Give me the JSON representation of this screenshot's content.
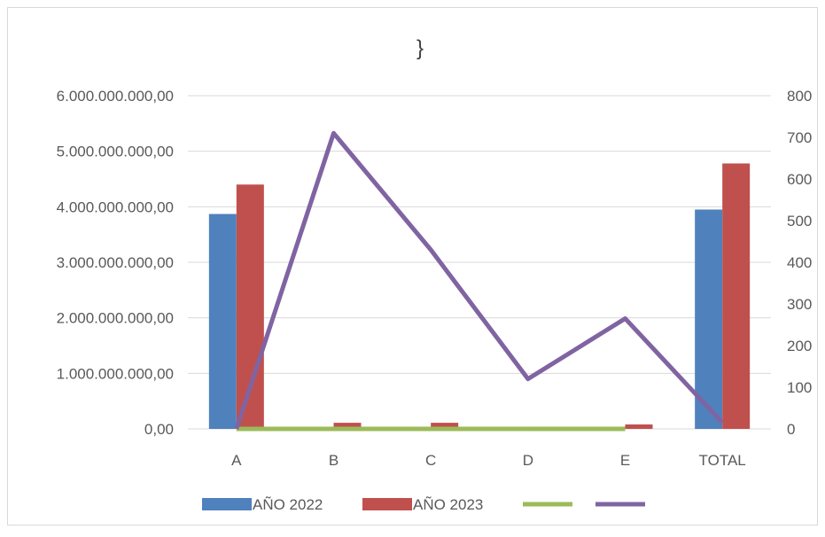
{
  "chart_data": {
    "type": "bar",
    "title": "}",
    "categories": [
      "A",
      "B",
      "C",
      "D",
      "E",
      "TOTAL"
    ],
    "series": [
      {
        "name": "AÑO 2022",
        "type": "bar",
        "axis": "left",
        "color": "#4F81BD",
        "values": [
          3870000000,
          0,
          0,
          0,
          0,
          3950000000
        ]
      },
      {
        "name": "AÑO 2023",
        "type": "bar",
        "axis": "left",
        "color": "#C0504D",
        "values": [
          4400000000,
          110000000,
          110000000,
          40000000,
          80000000,
          4780000000
        ]
      },
      {
        "name": "",
        "type": "line",
        "axis": "right",
        "color": "#9BBB59",
        "values": [
          0,
          0,
          0,
          0,
          0,
          null
        ]
      },
      {
        "name": "",
        "type": "line",
        "axis": "right",
        "color": "#8064A2",
        "values": [
          0,
          710,
          430,
          120,
          265,
          15
        ]
      }
    ],
    "y_left": {
      "ylim": [
        0,
        6000000000
      ],
      "ticks": [
        "0,00",
        "1.000.000.000,00",
        "2.000.000.000,00",
        "3.000.000.000,00",
        "4.000.000.000,00",
        "5.000.000.000,00",
        "6.000.000.000,00"
      ]
    },
    "y_right": {
      "ylim": [
        0,
        800
      ],
      "ticks": [
        "0",
        "100",
        "200",
        "300",
        "400",
        "500",
        "600",
        "700",
        "800"
      ]
    },
    "grid": true,
    "legend_position": "bottom"
  }
}
